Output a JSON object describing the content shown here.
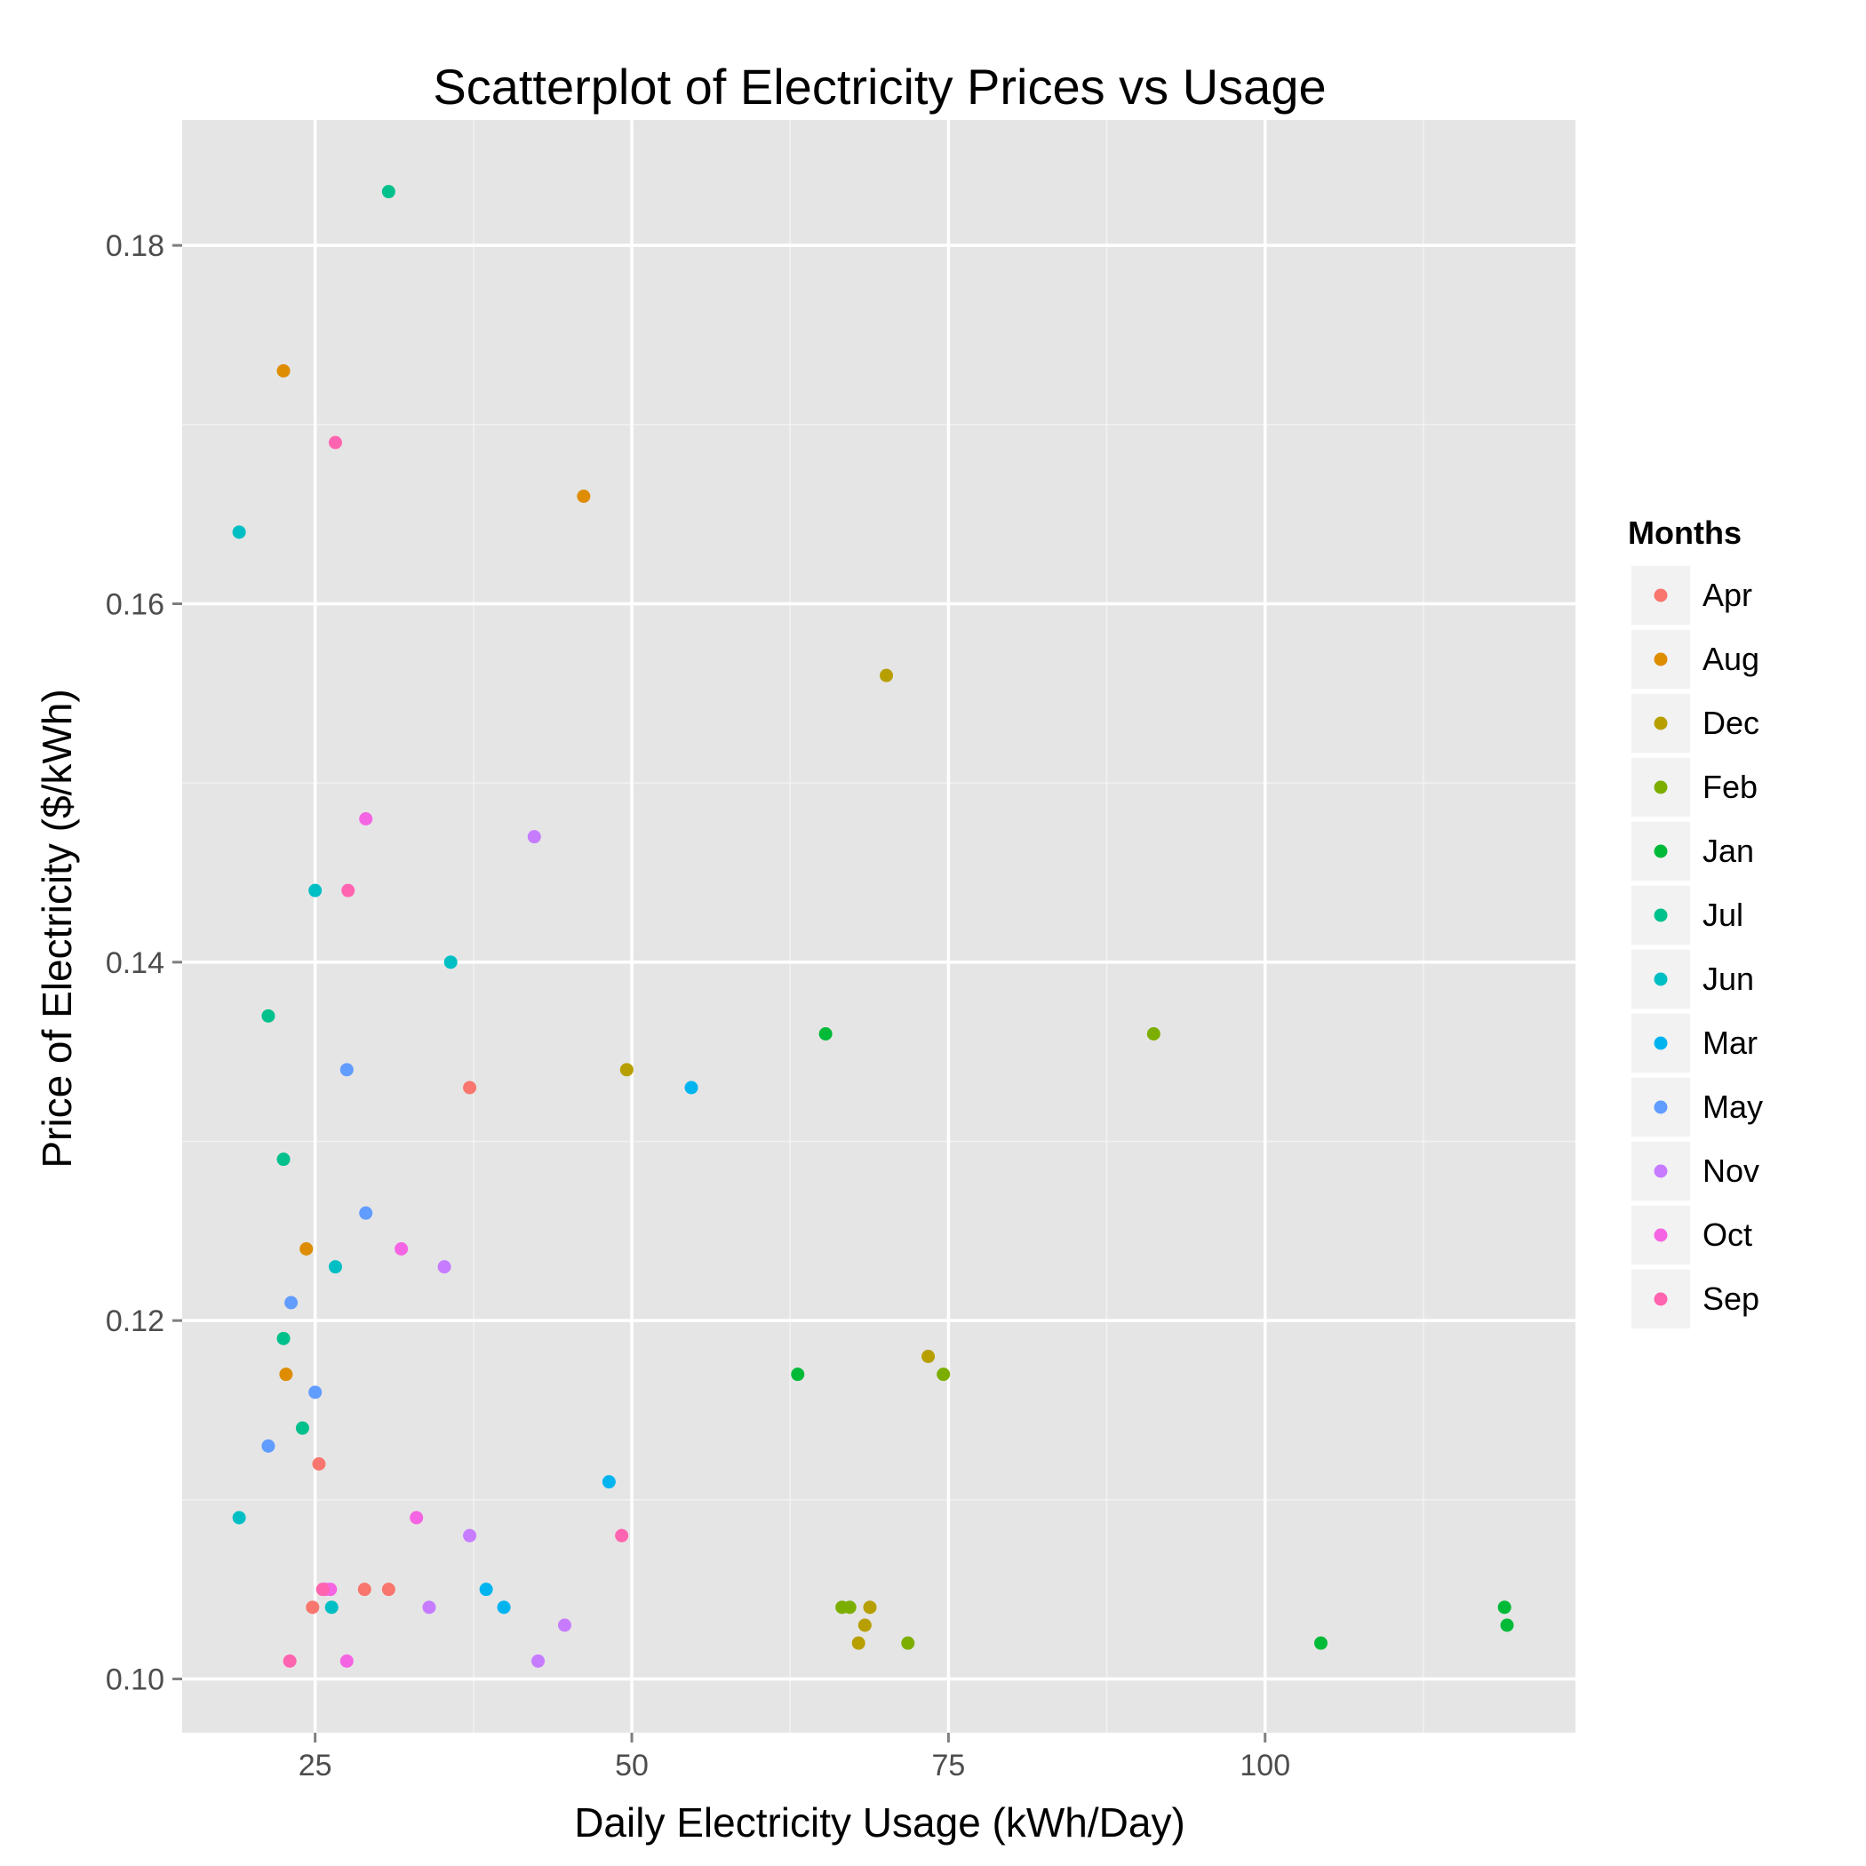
{
  "chart_data": {
    "type": "scatter",
    "title": "Scatterplot of Electricity Prices vs Usage",
    "xlabel": "Daily Electricity Usage (kWh/Day)",
    "ylabel": "Price of Electricity ($/kWh)",
    "xlim": [
      14.5,
      124.5
    ],
    "ylim": [
      0.097,
      0.187
    ],
    "x_ticks": [
      25,
      50,
      75,
      100
    ],
    "x_tick_labels": [
      "25",
      "50",
      "75",
      "100"
    ],
    "x_minor_ticks": [
      37.5,
      62.5,
      87.5,
      112.5
    ],
    "y_ticks": [
      0.1,
      0.12,
      0.14,
      0.16,
      0.18
    ],
    "y_tick_labels": [
      "0.10",
      "0.12",
      "0.14",
      "0.16",
      "0.18"
    ],
    "y_minor_ticks": [
      0.11,
      0.13,
      0.15,
      0.17
    ],
    "grid": true,
    "panel_color": "#E5E5E5",
    "legend": {
      "title": "Months",
      "position": "right",
      "entries": [
        "Apr",
        "Aug",
        "Dec",
        "Feb",
        "Jan",
        "Jul",
        "Jun",
        "Mar",
        "May",
        "Nov",
        "Oct",
        "Sep"
      ]
    },
    "series": [
      {
        "name": "Apr",
        "color": "#F8766D",
        "points": [
          [
            37.2,
            0.133
          ],
          [
            25.3,
            0.112
          ],
          [
            28.9,
            0.105
          ],
          [
            30.8,
            0.105
          ],
          [
            24.8,
            0.104
          ]
        ]
      },
      {
        "name": "Aug",
        "color": "#DE8C00",
        "points": [
          [
            22.5,
            0.173
          ],
          [
            46.2,
            0.166
          ],
          [
            24.3,
            0.124
          ],
          [
            22.7,
            0.117
          ]
        ]
      },
      {
        "name": "Dec",
        "color": "#B79F00",
        "points": [
          [
            70.1,
            0.156
          ],
          [
            49.6,
            0.134
          ],
          [
            73.4,
            0.118
          ],
          [
            68.8,
            0.104
          ],
          [
            68.4,
            0.103
          ],
          [
            67.9,
            0.102
          ]
        ]
      },
      {
        "name": "Feb",
        "color": "#7CAE00",
        "points": [
          [
            91.2,
            0.136
          ],
          [
            74.6,
            0.117
          ],
          [
            66.6,
            0.104
          ],
          [
            67.2,
            0.104
          ],
          [
            71.8,
            0.102
          ]
        ]
      },
      {
        "name": "Jan",
        "color": "#00BA38",
        "points": [
          [
            65.3,
            0.136
          ],
          [
            63.1,
            0.117
          ],
          [
            104.4,
            0.102
          ],
          [
            118.9,
            0.104
          ],
          [
            119.1,
            0.103
          ]
        ]
      },
      {
        "name": "Jul",
        "color": "#00C08B",
        "points": [
          [
            30.8,
            0.183
          ],
          [
            21.3,
            0.137
          ],
          [
            22.5,
            0.129
          ],
          [
            22.5,
            0.119
          ],
          [
            24.0,
            0.114
          ]
        ]
      },
      {
        "name": "Jun",
        "color": "#00BFC4",
        "points": [
          [
            19.0,
            0.164
          ],
          [
            25.0,
            0.144
          ],
          [
            35.7,
            0.14
          ],
          [
            26.6,
            0.123
          ],
          [
            19.0,
            0.109
          ],
          [
            26.3,
            0.104
          ]
        ]
      },
      {
        "name": "Mar",
        "color": "#00B4F0",
        "points": [
          [
            54.7,
            0.133
          ],
          [
            48.2,
            0.111
          ],
          [
            38.5,
            0.105
          ],
          [
            39.9,
            0.104
          ]
        ]
      },
      {
        "name": "May",
        "color": "#619CFF",
        "points": [
          [
            27.5,
            0.134
          ],
          [
            29.0,
            0.126
          ],
          [
            23.1,
            0.121
          ],
          [
            25.0,
            0.116
          ],
          [
            21.3,
            0.113
          ]
        ]
      },
      {
        "name": "Nov",
        "color": "#C77CFF",
        "points": [
          [
            42.3,
            0.147
          ],
          [
            35.2,
            0.123
          ],
          [
            37.2,
            0.108
          ],
          [
            34.0,
            0.104
          ],
          [
            44.7,
            0.103
          ],
          [
            42.6,
            0.101
          ]
        ]
      },
      {
        "name": "Oct",
        "color": "#F564E3",
        "points": [
          [
            29.0,
            0.148
          ],
          [
            31.8,
            0.124
          ],
          [
            33.0,
            0.109
          ],
          [
            25.8,
            0.105
          ],
          [
            26.2,
            0.105
          ],
          [
            27.5,
            0.101
          ]
        ]
      },
      {
        "name": "Sep",
        "color": "#FF64B0",
        "points": [
          [
            26.6,
            0.169
          ],
          [
            27.6,
            0.144
          ],
          [
            49.2,
            0.108
          ],
          [
            25.6,
            0.105
          ],
          [
            23.0,
            0.101
          ]
        ]
      }
    ]
  }
}
